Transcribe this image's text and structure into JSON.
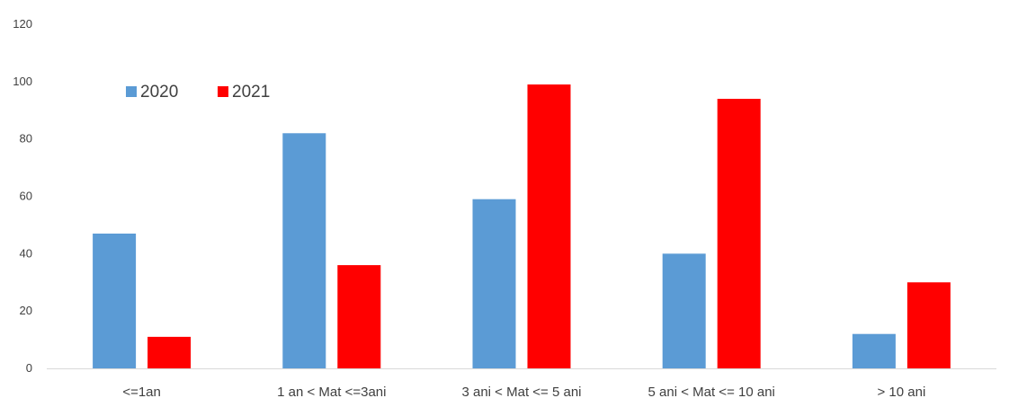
{
  "chart_data": {
    "type": "bar",
    "title": "",
    "xlabel": "",
    "ylabel": "",
    "categories": [
      "<=1an",
      "1 an < Mat <=3ani",
      "3 ani < Mat <= 5 ani",
      "5 ani < Mat <= 10 ani",
      "> 10 ani"
    ],
    "series": [
      {
        "name": "2020",
        "color": "#5B9BD5",
        "values": [
          47,
          82,
          59,
          40,
          12
        ]
      },
      {
        "name": "2021",
        "color": "#FF0000",
        "values": [
          11,
          36,
          99,
          94,
          30
        ]
      }
    ],
    "ylim": [
      0,
      120
    ],
    "yticks": [
      0,
      20,
      40,
      60,
      80,
      100,
      120
    ],
    "grid": false,
    "legend": "top-left"
  }
}
